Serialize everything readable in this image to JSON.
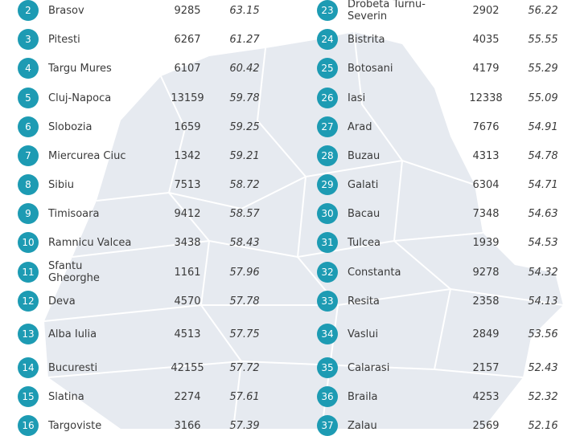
{
  "table": {
    "left": [
      {
        "rank": 2,
        "city": "Brasov",
        "count": 9285,
        "score": 63.15
      },
      {
        "rank": 3,
        "city": "Pitesti",
        "count": 6267,
        "score": 61.27
      },
      {
        "rank": 4,
        "city": "Targu Mures",
        "count": 6107,
        "score": 60.42
      },
      {
        "rank": 5,
        "city": "Cluj-Napoca",
        "count": 13159,
        "score": 59.78
      },
      {
        "rank": 6,
        "city": "Slobozia",
        "count": 1659,
        "score": 59.25
      },
      {
        "rank": 7,
        "city": "Miercurea Ciuc",
        "count": 1342,
        "score": 59.21
      },
      {
        "rank": 8,
        "city": "Sibiu",
        "count": 7513,
        "score": 58.72
      },
      {
        "rank": 9,
        "city": "Timisoara",
        "count": 9412,
        "score": 58.57
      },
      {
        "rank": 10,
        "city": "Ramnicu Valcea",
        "count": 3438,
        "score": 58.43
      },
      {
        "rank": 11,
        "city": "Sfantu Gheorghe",
        "count": 1161,
        "score": 57.96
      },
      {
        "rank": 12,
        "city": "Deva",
        "count": 4570,
        "score": 57.78
      },
      {
        "rank": 13,
        "city": "Alba Iulia",
        "count": 4513,
        "score": 57.75
      },
      {
        "rank": 14,
        "city": "Bucuresti",
        "count": 42155,
        "score": 57.72
      },
      {
        "rank": 15,
        "city": "Slatina",
        "count": 2274,
        "score": 57.61
      },
      {
        "rank": 16,
        "city": "Targoviste",
        "count": 3166,
        "score": 57.39
      }
    ],
    "right": [
      {
        "rank": 23,
        "city": "Drobeta Turnu-Severin",
        "count": 2902,
        "score": 56.22
      },
      {
        "rank": 24,
        "city": "Bistrita",
        "count": 4035,
        "score": 55.55
      },
      {
        "rank": 25,
        "city": "Botosani",
        "count": 4179,
        "score": 55.29
      },
      {
        "rank": 26,
        "city": "Iasi",
        "count": 12338,
        "score": 55.09
      },
      {
        "rank": 27,
        "city": "Arad",
        "count": 7676,
        "score": 54.91
      },
      {
        "rank": 28,
        "city": "Buzau",
        "count": 4313,
        "score": 54.78
      },
      {
        "rank": 29,
        "city": "Galati",
        "count": 6304,
        "score": 54.71
      },
      {
        "rank": 30,
        "city": "Bacau",
        "count": 7348,
        "score": 54.63
      },
      {
        "rank": 31,
        "city": "Tulcea",
        "count": 1939,
        "score": 54.53
      },
      {
        "rank": 32,
        "city": "Constanta",
        "count": 9278,
        "score": 54.32
      },
      {
        "rank": 33,
        "city": "Resita",
        "count": 2358,
        "score": 54.13
      },
      {
        "rank": 34,
        "city": "Vaslui",
        "count": 2849,
        "score": 53.56
      },
      {
        "rank": 35,
        "city": "Calarasi",
        "count": 2157,
        "score": 52.43
      },
      {
        "rank": 36,
        "city": "Braila",
        "count": 4253,
        "score": 52.32
      },
      {
        "rank": 37,
        "city": "Zalau",
        "count": 2569,
        "score": 52.16
      }
    ]
  }
}
